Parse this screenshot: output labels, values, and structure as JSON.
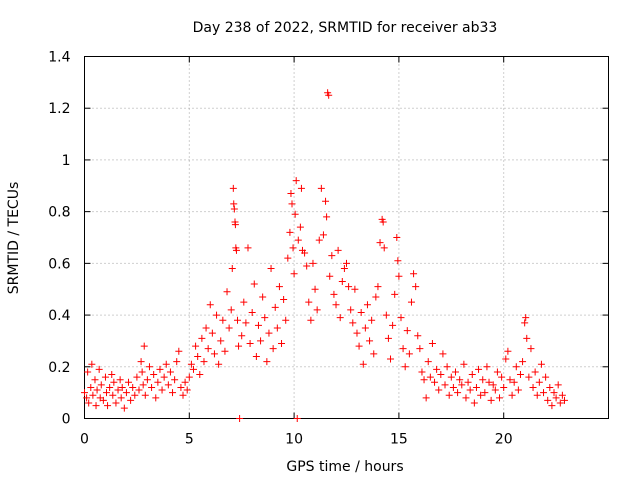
{
  "chart_data": {
    "type": "scatter",
    "title": "Day 238 of 2022, SRMTID for receiver ab33",
    "xlabel": "GPS time / hours",
    "ylabel": "SRMTID / TECUs",
    "xlim": [
      0,
      25
    ],
    "ylim": [
      0,
      1.4
    ],
    "xticks": [
      0,
      5,
      10,
      15,
      20
    ],
    "yticks": [
      0,
      0.2,
      0.4,
      0.6,
      0.8,
      1,
      1.2,
      1.4
    ],
    "xtick_labels": [
      "0",
      "5",
      "10",
      "15",
      "20"
    ],
    "ytick_labels": [
      "0",
      "0.2",
      "0.4",
      "0.6",
      "0.8",
      "1",
      "1.2",
      "1.4"
    ],
    "grid": true,
    "marker": "+",
    "color": "#ff0000",
    "series": [
      {
        "name": "SRMTID",
        "points": [
          [
            0.0,
            0.1
          ],
          [
            0.1,
            0.08
          ],
          [
            0.15,
            0.18
          ],
          [
            0.2,
            0.06
          ],
          [
            0.3,
            0.12
          ],
          [
            0.35,
            0.21
          ],
          [
            0.4,
            0.09
          ],
          [
            0.5,
            0.15
          ],
          [
            0.55,
            0.05
          ],
          [
            0.6,
            0.11
          ],
          [
            0.7,
            0.19
          ],
          [
            0.75,
            0.08
          ],
          [
            0.8,
            0.13
          ],
          [
            0.9,
            0.07
          ],
          [
            1.0,
            0.16
          ],
          [
            1.05,
            0.1
          ],
          [
            1.1,
            0.05
          ],
          [
            1.2,
            0.12
          ],
          [
            1.3,
            0.17
          ],
          [
            1.35,
            0.09
          ],
          [
            1.4,
            0.14
          ],
          [
            1.5,
            0.06
          ],
          [
            1.6,
            0.11
          ],
          [
            1.7,
            0.15
          ],
          [
            1.75,
            0.08
          ],
          [
            1.8,
            0.12
          ],
          [
            1.9,
            0.04
          ],
          [
            2.0,
            0.1
          ],
          [
            2.1,
            0.14
          ],
          [
            2.2,
            0.07
          ],
          [
            2.3,
            0.12
          ],
          [
            2.4,
            0.09
          ],
          [
            2.5,
            0.16
          ],
          [
            2.6,
            0.11
          ],
          [
            2.7,
            0.22
          ],
          [
            2.75,
            0.18
          ],
          [
            2.8,
            0.13
          ],
          [
            2.85,
            0.28
          ],
          [
            2.9,
            0.09
          ],
          [
            3.0,
            0.15
          ],
          [
            3.1,
            0.2
          ],
          [
            3.2,
            0.12
          ],
          [
            3.3,
            0.17
          ],
          [
            3.4,
            0.08
          ],
          [
            3.5,
            0.14
          ],
          [
            3.6,
            0.19
          ],
          [
            3.7,
            0.11
          ],
          [
            3.8,
            0.16
          ],
          [
            3.9,
            0.21
          ],
          [
            4.0,
            0.13
          ],
          [
            4.1,
            0.18
          ],
          [
            4.2,
            0.1
          ],
          [
            4.3,
            0.15
          ],
          [
            4.4,
            0.22
          ],
          [
            4.5,
            0.26
          ],
          [
            4.6,
            0.12
          ],
          [
            4.7,
            0.09
          ],
          [
            4.8,
            0.14
          ],
          [
            4.9,
            0.11
          ],
          [
            5.0,
            0.16
          ],
          [
            5.1,
            0.21
          ],
          [
            5.2,
            0.19
          ],
          [
            5.3,
            0.28
          ],
          [
            5.4,
            0.24
          ],
          [
            5.5,
            0.17
          ],
          [
            5.6,
            0.31
          ],
          [
            5.7,
            0.22
          ],
          [
            5.8,
            0.35
          ],
          [
            5.9,
            0.27
          ],
          [
            6.0,
            0.44
          ],
          [
            6.1,
            0.33
          ],
          [
            6.2,
            0.25
          ],
          [
            6.3,
            0.4
          ],
          [
            6.4,
            0.21
          ],
          [
            6.5,
            0.3
          ],
          [
            6.6,
            0.38
          ],
          [
            6.7,
            0.26
          ],
          [
            6.8,
            0.49
          ],
          [
            6.9,
            0.35
          ],
          [
            7.0,
            0.42
          ],
          [
            7.05,
            0.58
          ],
          [
            7.1,
            0.89
          ],
          [
            7.12,
            0.83
          ],
          [
            7.15,
            0.81
          ],
          [
            7.18,
            0.76
          ],
          [
            7.2,
            0.75
          ],
          [
            7.22,
            0.66
          ],
          [
            7.25,
            0.65
          ],
          [
            7.3,
            0.38
          ],
          [
            7.35,
            0.28
          ],
          [
            7.4,
            0.0
          ],
          [
            7.5,
            0.32
          ],
          [
            7.6,
            0.45
          ],
          [
            7.7,
            0.37
          ],
          [
            7.8,
            0.66
          ],
          [
            7.9,
            0.29
          ],
          [
            8.0,
            0.41
          ],
          [
            8.1,
            0.52
          ],
          [
            8.2,
            0.24
          ],
          [
            8.3,
            0.36
          ],
          [
            8.4,
            0.3
          ],
          [
            8.5,
            0.47
          ],
          [
            8.6,
            0.39
          ],
          [
            8.7,
            0.22
          ],
          [
            8.8,
            0.33
          ],
          [
            8.9,
            0.58
          ],
          [
            9.0,
            0.27
          ],
          [
            9.1,
            0.43
          ],
          [
            9.2,
            0.35
          ],
          [
            9.3,
            0.51
          ],
          [
            9.4,
            0.29
          ],
          [
            9.5,
            0.46
          ],
          [
            9.6,
            0.38
          ],
          [
            9.7,
            0.62
          ],
          [
            9.8,
            0.72
          ],
          [
            9.85,
            0.87
          ],
          [
            9.9,
            0.83
          ],
          [
            9.95,
            0.66
          ],
          [
            10.0,
            0.56
          ],
          [
            10.05,
            0.79
          ],
          [
            10.1,
            0.92
          ],
          [
            10.15,
            0.0
          ],
          [
            10.2,
            0.69
          ],
          [
            10.3,
            0.74
          ],
          [
            10.35,
            0.89
          ],
          [
            10.4,
            0.65
          ],
          [
            10.5,
            0.64
          ],
          [
            10.6,
            0.59
          ],
          [
            10.7,
            0.45
          ],
          [
            10.8,
            0.38
          ],
          [
            10.9,
            0.6
          ],
          [
            11.0,
            0.5
          ],
          [
            11.1,
            0.42
          ],
          [
            11.2,
            0.69
          ],
          [
            11.3,
            0.89
          ],
          [
            11.4,
            0.71
          ],
          [
            11.5,
            0.84
          ],
          [
            11.55,
            0.78
          ],
          [
            11.6,
            1.26
          ],
          [
            11.65,
            1.25
          ],
          [
            11.7,
            0.55
          ],
          [
            11.8,
            0.63
          ],
          [
            11.9,
            0.48
          ],
          [
            12.0,
            0.44
          ],
          [
            12.1,
            0.65
          ],
          [
            12.2,
            0.39
          ],
          [
            12.3,
            0.53
          ],
          [
            12.4,
            0.58
          ],
          [
            12.5,
            0.6
          ],
          [
            12.6,
            0.51
          ],
          [
            12.7,
            0.42
          ],
          [
            12.8,
            0.37
          ],
          [
            12.9,
            0.5
          ],
          [
            13.0,
            0.33
          ],
          [
            13.1,
            0.28
          ],
          [
            13.2,
            0.41
          ],
          [
            13.3,
            0.21
          ],
          [
            13.4,
            0.35
          ],
          [
            13.5,
            0.44
          ],
          [
            13.6,
            0.3
          ],
          [
            13.7,
            0.38
          ],
          [
            13.8,
            0.25
          ],
          [
            13.9,
            0.47
          ],
          [
            14.0,
            0.51
          ],
          [
            14.1,
            0.68
          ],
          [
            14.2,
            0.77
          ],
          [
            14.25,
            0.76
          ],
          [
            14.3,
            0.66
          ],
          [
            14.4,
            0.4
          ],
          [
            14.5,
            0.31
          ],
          [
            14.6,
            0.23
          ],
          [
            14.7,
            0.36
          ],
          [
            14.8,
            0.48
          ],
          [
            14.9,
            0.7
          ],
          [
            14.95,
            0.61
          ],
          [
            15.0,
            0.55
          ],
          [
            15.1,
            0.39
          ],
          [
            15.2,
            0.27
          ],
          [
            15.3,
            0.2
          ],
          [
            15.4,
            0.34
          ],
          [
            15.5,
            0.25
          ],
          [
            15.6,
            0.45
          ],
          [
            15.7,
            0.56
          ],
          [
            15.8,
            0.51
          ],
          [
            15.9,
            0.32
          ],
          [
            16.0,
            0.27
          ],
          [
            16.1,
            0.18
          ],
          [
            16.2,
            0.15
          ],
          [
            16.3,
            0.08
          ],
          [
            16.4,
            0.22
          ],
          [
            16.5,
            0.16
          ],
          [
            16.6,
            0.29
          ],
          [
            16.7,
            0.14
          ],
          [
            16.8,
            0.19
          ],
          [
            16.9,
            0.11
          ],
          [
            17.0,
            0.17
          ],
          [
            17.1,
            0.25
          ],
          [
            17.2,
            0.13
          ],
          [
            17.3,
            0.2
          ],
          [
            17.4,
            0.09
          ],
          [
            17.5,
            0.16
          ],
          [
            17.6,
            0.12
          ],
          [
            17.7,
            0.18
          ],
          [
            17.8,
            0.1
          ],
          [
            17.9,
            0.15
          ],
          [
            18.0,
            0.13
          ],
          [
            18.1,
            0.21
          ],
          [
            18.2,
            0.08
          ],
          [
            18.3,
            0.14
          ],
          [
            18.4,
            0.11
          ],
          [
            18.5,
            0.17
          ],
          [
            18.6,
            0.06
          ],
          [
            18.7,
            0.12
          ],
          [
            18.8,
            0.19
          ],
          [
            18.9,
            0.09
          ],
          [
            19.0,
            0.15
          ],
          [
            19.1,
            0.1
          ],
          [
            19.2,
            0.2
          ],
          [
            19.3,
            0.14
          ],
          [
            19.4,
            0.07
          ],
          [
            19.5,
            0.13
          ],
          [
            19.6,
            0.11
          ],
          [
            19.7,
            0.18
          ],
          [
            19.8,
            0.08
          ],
          [
            19.9,
            0.16
          ],
          [
            20.0,
            0.12
          ],
          [
            20.1,
            0.23
          ],
          [
            20.2,
            0.26
          ],
          [
            20.3,
            0.15
          ],
          [
            20.4,
            0.09
          ],
          [
            20.5,
            0.14
          ],
          [
            20.6,
            0.2
          ],
          [
            20.7,
            0.11
          ],
          [
            20.8,
            0.17
          ],
          [
            20.9,
            0.22
          ],
          [
            21.0,
            0.37
          ],
          [
            21.05,
            0.39
          ],
          [
            21.1,
            0.31
          ],
          [
            21.2,
            0.16
          ],
          [
            21.3,
            0.27
          ],
          [
            21.4,
            0.12
          ],
          [
            21.5,
            0.18
          ],
          [
            21.6,
            0.09
          ],
          [
            21.7,
            0.14
          ],
          [
            21.8,
            0.21
          ],
          [
            21.9,
            0.1
          ],
          [
            22.0,
            0.16
          ],
          [
            22.1,
            0.07
          ],
          [
            22.2,
            0.12
          ],
          [
            22.3,
            0.05
          ],
          [
            22.4,
            0.1
          ],
          [
            22.5,
            0.08
          ],
          [
            22.6,
            0.13
          ],
          [
            22.7,
            0.06
          ],
          [
            22.8,
            0.09
          ],
          [
            22.9,
            0.07
          ]
        ]
      }
    ]
  }
}
